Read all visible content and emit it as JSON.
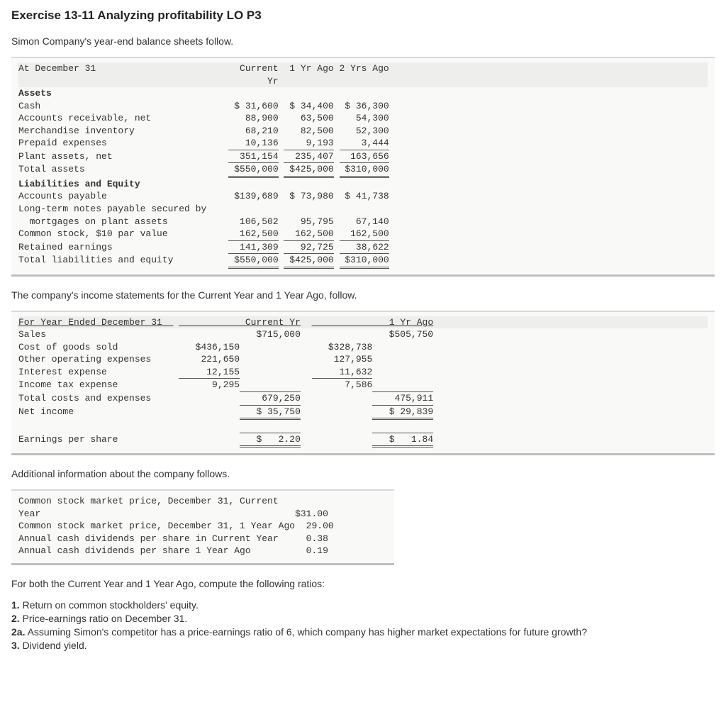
{
  "title": "Exercise 13-11 Analyzing profitability LO P3",
  "intro1": "Simon Company's year-end balance sheets follow.",
  "bs": {
    "header": {
      "c0": "At December 31",
      "c1": "Current\nYr",
      "c2": "1 Yr Ago",
      "c3": "2 Yrs Ago"
    },
    "assets_hdr": "Assets",
    "rows_assets": [
      {
        "l": "Cash",
        "c1": "$ 31,600",
        "c2": "$ 34,400",
        "c3": "$ 36,300"
      },
      {
        "l": "Accounts receivable, net",
        "c1": "88,900",
        "c2": "63,500",
        "c3": "54,300"
      },
      {
        "l": "Merchandise inventory",
        "c1": "68,210",
        "c2": "82,500",
        "c3": "52,300"
      },
      {
        "l": "Prepaid expenses",
        "c1": "10,136",
        "c2": "9,193",
        "c3": "3,444"
      },
      {
        "l": "Plant assets, net",
        "c1": "351,154",
        "c2": "235,407",
        "c3": "163,656"
      }
    ],
    "total_assets": {
      "l": "Total assets",
      "c1": "$550,000",
      "c2": "$425,000",
      "c3": "$310,000"
    },
    "le_hdr": "Liabilities and Equity",
    "rows_le": [
      {
        "l": "Accounts payable",
        "c1": "$139,689",
        "c2": "$ 73,980",
        "c3": "$ 41,738"
      },
      {
        "l": "Long-term notes payable secured by\n  mortgages on plant assets",
        "c1": "106,502",
        "c2": "95,795",
        "c3": "67,140"
      },
      {
        "l": "Common stock, $10 par value",
        "c1": "162,500",
        "c2": "162,500",
        "c3": "162,500"
      },
      {
        "l": "Retained earnings",
        "c1": "141,309",
        "c2": "92,725",
        "c3": "38,622"
      }
    ],
    "total_le": {
      "l": "Total liabilities and equity",
      "c1": "$550,000",
      "c2": "$425,000",
      "c3": "$310,000"
    }
  },
  "intro2": "The company's income statements for the Current Year and 1 Year Ago, follow.",
  "is": {
    "header": {
      "c0": "For Year Ended December 31",
      "c1": "Current Yr",
      "c2": "1 Yr Ago"
    },
    "sales": {
      "l": "Sales",
      "c1": "$715,000",
      "c2": "$505,750"
    },
    "rows": [
      {
        "l": "Cost of goods sold",
        "a1": "$436,150",
        "a2": "$328,738"
      },
      {
        "l": "Other operating expenses",
        "a1": "221,650",
        "a2": "127,955"
      },
      {
        "l": "Interest expense",
        "a1": "12,155",
        "a2": "11,632"
      },
      {
        "l": "Income tax expense",
        "a1": "9,295",
        "a2": "7,586"
      }
    ],
    "total_costs": {
      "l": "Total costs and expenses",
      "c1": "679,250",
      "c2": "475,911"
    },
    "net_income": {
      "l": "Net income",
      "c1": "$ 35,750",
      "c2": "$ 29,839"
    },
    "eps": {
      "l": "Earnings per share",
      "c1": "$   2.20",
      "c2": "$   1.84"
    }
  },
  "intro3": "Additional information about the company follows.",
  "addl": [
    {
      "l": "Common stock market price, December 31, Current\nYear",
      "v": "$31.00"
    },
    {
      "l": "Common stock market price, December 31, 1 Year Ago",
      "v": "29.00"
    },
    {
      "l": "Annual cash dividends per share in Current Year",
      "v": "0.38"
    },
    {
      "l": "Annual cash dividends per share 1 Year Ago",
      "v": "0.19"
    }
  ],
  "intro4": "For both the Current Year and 1 Year Ago, compute the following ratios:",
  "q": {
    "q1n": "1.",
    "q1": "Return on common stockholders' equity.",
    "q2n": "2.",
    "q2": "Price-earnings ratio on December 31.",
    "q2an": "2a.",
    "q2a": "Assuming Simon's competitor has a price-earnings ratio of 6, which company has higher market expectations for future growth?",
    "q3n": "3.",
    "q3": "Dividend yield."
  },
  "style": {
    "mono_font": "Courier New",
    "body_font": "Arial",
    "bg_table": "#f9f9f7",
    "bg_header_row": "#eeeeec",
    "border_color": "#bfbfbd",
    "text_color": "#333333",
    "col_widths_bs": {
      "label": 38,
      "num": 9
    },
    "col_widths_is": {
      "label": 28,
      "sub": 11,
      "num": 11
    },
    "col_widths_addl": {
      "label": 49,
      "num": 7
    }
  }
}
